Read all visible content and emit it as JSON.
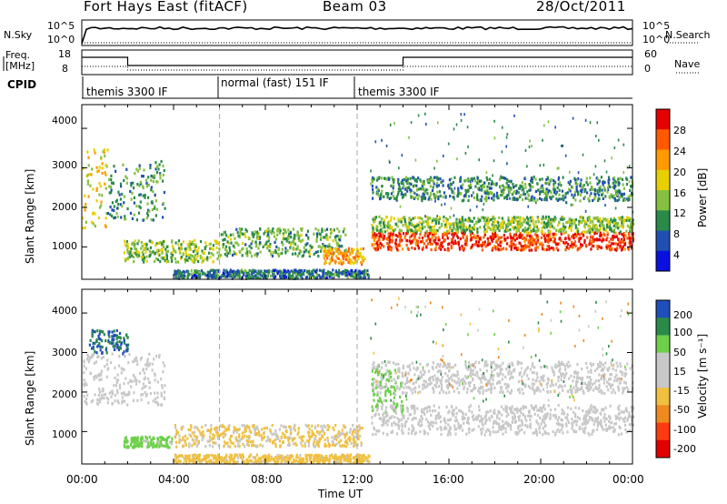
{
  "header": {
    "station": "Fort Hays East (fitACF)",
    "beam": "Beam 03",
    "date": "28/Oct/2011"
  },
  "aux_panels": {
    "nsky_label": "N.Sky",
    "nsky_ticks": [
      "10^5",
      "10^0"
    ],
    "nsearch_label": "N.Search",
    "nsearch_ticks": [
      "10^5",
      "10^0"
    ],
    "freq_label": "Freq.",
    "freq_unit": "[MHz]",
    "freq_ticks": [
      "18",
      "8"
    ],
    "nave_label": "Nave",
    "nave_ticks": [
      "60",
      "0"
    ],
    "cpid_label": "CPID",
    "cpid_segments": [
      {
        "label": "themis 3300 IF",
        "start_hour": 0,
        "end_hour": 6
      },
      {
        "label": "normal (fast) 151 IF",
        "start_hour": 6,
        "end_hour": 12
      },
      {
        "label": "themis 3300 IF",
        "start_hour": 12,
        "end_hour": 24
      }
    ]
  },
  "axes": {
    "y_label": "Slant Range [km]",
    "y_ticks": [
      "4000",
      "3000",
      "2000",
      "1000"
    ],
    "x_label": "Time UT",
    "x_ticks": [
      "00:00",
      "04:00",
      "08:00",
      "12:00",
      "16:00",
      "20:00",
      "00:00"
    ]
  },
  "colorbars": {
    "power": {
      "label": "Power [dB]",
      "ticks": [
        "28",
        "24",
        "20",
        "16",
        "12",
        "8",
        "4"
      ],
      "colors": [
        "#e60000",
        "#ff5a00",
        "#ff9a00",
        "#e8d000",
        "#86c040",
        "#2a8a4a",
        "#1f50b0",
        "#0a10e0"
      ]
    },
    "velocity": {
      "label": "Velocity [m s⁻¹]",
      "ticks": [
        "200",
        "100",
        "50",
        "15",
        "-15",
        "-50",
        "-100",
        "-200"
      ],
      "colors": [
        "#1f4fb8",
        "#2a8a4a",
        "#6ed04a",
        "#c8c8c8",
        "#c8c8c8",
        "#f0c040",
        "#f08a20",
        "#ff3a10",
        "#e00000"
      ]
    }
  },
  "chart_data": [
    {
      "type": "heatmap",
      "name": "power",
      "xlabel": "Time UT",
      "ylabel": "Slant Range [km]",
      "xlim_hours": [
        0,
        24
      ],
      "ylim_km": [
        180,
        4600
      ],
      "colorbar": "Power [dB]",
      "regions": [
        {
          "t0": 0.0,
          "t1": 1.1,
          "r0": 1500,
          "r1": 3500,
          "level": 16
        },
        {
          "t0": 1.1,
          "t1": 3.6,
          "r0": 1700,
          "r1": 3200,
          "level": 8
        },
        {
          "t0": 1.8,
          "t1": 6.0,
          "r0": 650,
          "r1": 1200,
          "level": 12
        },
        {
          "t0": 6.0,
          "t1": 11.5,
          "r0": 800,
          "r1": 1500,
          "level": 10
        },
        {
          "t0": 10.5,
          "t1": 12.3,
          "r0": 600,
          "r1": 1000,
          "level": 20
        },
        {
          "t0": 12.6,
          "t1": 24.0,
          "r0": 950,
          "r1": 1400,
          "level": 26
        },
        {
          "t0": 12.6,
          "t1": 24.0,
          "r0": 1400,
          "r1": 1800,
          "level": 12
        },
        {
          "t0": 12.6,
          "t1": 24.0,
          "r0": 2200,
          "r1": 2800,
          "level": 8
        },
        {
          "t0": 4.0,
          "t1": 12.5,
          "r0": 230,
          "r1": 450,
          "level": 6
        }
      ]
    },
    {
      "type": "heatmap",
      "name": "velocity",
      "xlabel": "Time UT",
      "ylabel": "Slant Range [km]",
      "xlim_hours": [
        0,
        24
      ],
      "ylim_km": [
        180,
        4600
      ],
      "colorbar": "Velocity [m s⁻¹]",
      "regions": [
        {
          "t0": 0.0,
          "t1": 3.6,
          "r0": 1700,
          "r1": 3000,
          "level": 0
        },
        {
          "t0": 0.3,
          "t1": 2.0,
          "r0": 3000,
          "r1": 3600,
          "level": 150
        },
        {
          "t0": 1.8,
          "t1": 4.0,
          "r0": 620,
          "r1": 900,
          "level": 40
        },
        {
          "t0": 4.0,
          "t1": 12.2,
          "r0": 650,
          "r1": 1200,
          "level": -30
        },
        {
          "t0": 12.6,
          "t1": 24.0,
          "r0": 950,
          "r1": 1700,
          "level": 0
        },
        {
          "t0": 12.6,
          "t1": 24.0,
          "r0": 2000,
          "r1": 2800,
          "level": 0
        },
        {
          "t0": 12.6,
          "t1": 14.0,
          "r0": 1500,
          "r1": 2600,
          "level": 40
        },
        {
          "t0": 4.0,
          "t1": 12.5,
          "r0": 230,
          "r1": 450,
          "level": -40
        }
      ]
    }
  ]
}
